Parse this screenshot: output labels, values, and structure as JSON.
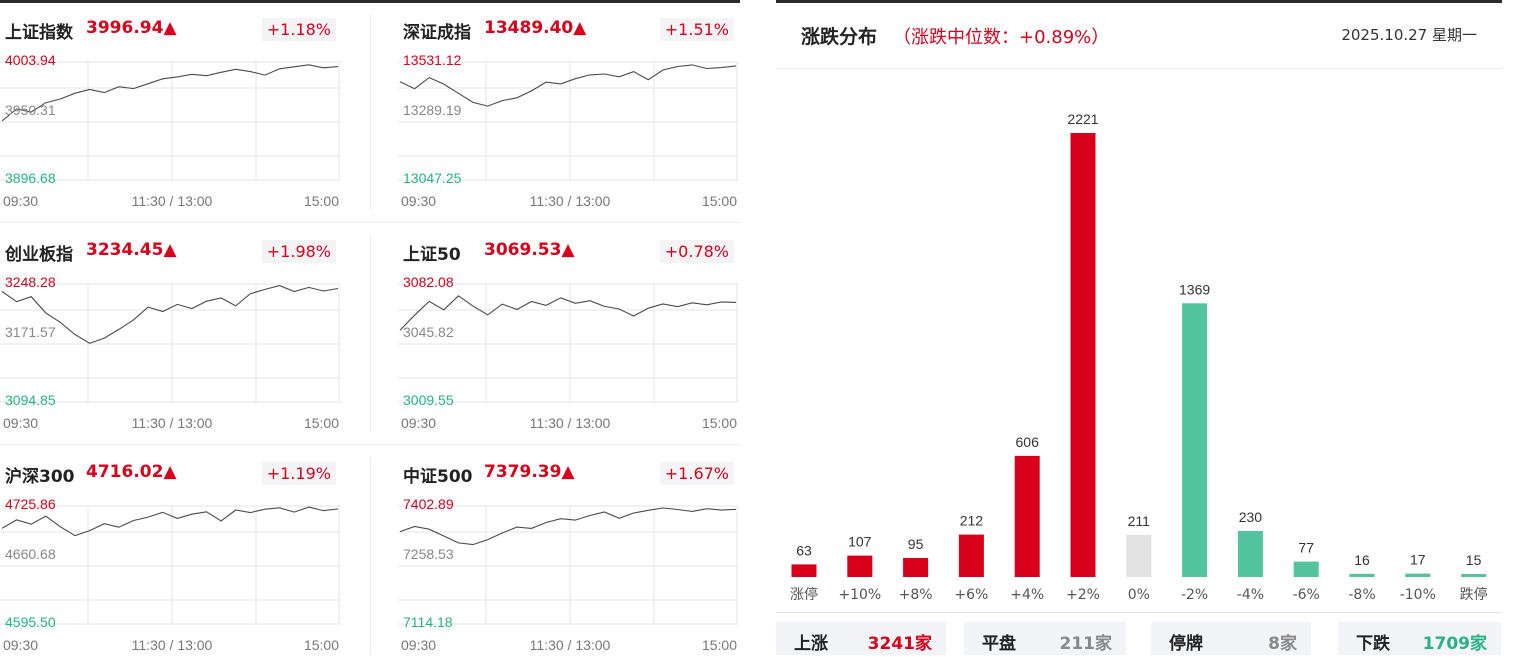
{
  "colors": {
    "up": "#d9001b",
    "down": "#27b383",
    "flat": "#e3e3e3",
    "neutral": "#888888"
  },
  "indices": [
    {
      "name": "上证指数",
      "value": "3996.94",
      "arrow": "▲",
      "change": "+1.18%",
      "high": "4003.94",
      "mid": "3950.31",
      "low": "3896.68",
      "times": [
        "09:30",
        "11:30 / 13:00",
        "15:00"
      ],
      "chart_data": {
        "type": "line",
        "ylim": [
          3896.68,
          4003.94
        ],
        "x_labels": [
          "09:30",
          "11:30 / 13:00",
          "15:00"
        ],
        "values": [
          3950.31,
          3961.2,
          3958.5,
          3966.9,
          3970.3,
          3975.6,
          3978.9,
          3976.1,
          3981.5,
          3979.8,
          3984.2,
          3988.7,
          3990.4,
          3992.8,
          3991.5,
          3994.6,
          3997.3,
          3995.2,
          3992.0,
          3997.8,
          3999.6,
          4001.4,
          3998.7,
          3999.8
        ]
      }
    },
    {
      "name": "深证成指",
      "value": "13489.40",
      "arrow": "▲",
      "change": "+1.51%",
      "high": "13531.12",
      "mid": "13289.19",
      "low": "13047.25",
      "times": [
        "09:30",
        "11:30 / 13:00",
        "15:00"
      ],
      "chart_data": {
        "type": "line",
        "ylim": [
          13047.25,
          13531.12
        ],
        "x_labels": [
          "09:30",
          "11:30 / 13:00",
          "15:00"
        ],
        "values": [
          13450.1,
          13421.8,
          13467.2,
          13440.3,
          13402.7,
          13365.4,
          13350.2,
          13372.9,
          13384.5,
          13412.6,
          13448.9,
          13441.2,
          13462.5,
          13478.3,
          13482.1,
          13470.5,
          13491.8,
          13458.6,
          13498.4,
          13512.7,
          13519.3,
          13504.6,
          13508.1,
          13515.2
        ]
      }
    },
    {
      "name": "创业板指",
      "value": "3234.45",
      "arrow": "▲",
      "change": "+1.98%",
      "high": "3248.28",
      "mid": "3171.57",
      "low": "3094.85",
      "times": [
        "09:30",
        "11:30 / 13:00",
        "15:00"
      ],
      "chart_data": {
        "type": "line",
        "ylim": [
          3094.85,
          3248.28
        ],
        "x_labels": [
          "09:30",
          "11:30 / 13:00",
          "15:00"
        ],
        "values": [
          3238.5,
          3225.3,
          3231.8,
          3210.7,
          3198.4,
          3182.6,
          3171.2,
          3177.9,
          3189.3,
          3201.6,
          3218.2,
          3212.5,
          3221.7,
          3216.4,
          3225.9,
          3230.1,
          3219.8,
          3235.7,
          3241.3,
          3246.2,
          3238.5,
          3243.9,
          3239.2,
          3242.4
        ]
      }
    },
    {
      "name": "上证50",
      "value": "3069.53",
      "arrow": "▲",
      "change": "+0.78%",
      "high": "3082.08",
      "mid": "3045.82",
      "low": "3009.55",
      "times": [
        "09:30",
        "11:30 / 13:00",
        "15:00"
      ],
      "chart_data": {
        "type": "line",
        "ylim": [
          3009.55,
          3082.08
        ],
        "x_labels": [
          "09:30",
          "11:30 / 13:00",
          "15:00"
        ],
        "values": [
          3053.6,
          3062.9,
          3071.4,
          3066.2,
          3074.8,
          3068.5,
          3063.1,
          3069.7,
          3066.4,
          3071.3,
          3068.9,
          3073.6,
          3070.2,
          3071.8,
          3068.3,
          3066.7,
          3062.4,
          3067.2,
          3069.8,
          3068.1,
          3070.5,
          3069.3,
          3071.1,
          3070.8
        ]
      }
    },
    {
      "name": "沪深300",
      "value": "4716.02",
      "arrow": "▲",
      "change": "+1.19%",
      "high": "4725.86",
      "mid": "4660.68",
      "low": "4595.50",
      "times": [
        "09:30",
        "11:30 / 13:00",
        "15:00"
      ],
      "chart_data": {
        "type": "line",
        "ylim": [
          4595.5,
          4725.86
        ],
        "x_labels": [
          "09:30",
          "11:30 / 13:00",
          "15:00"
        ],
        "values": [
          4701.2,
          4710.5,
          4705.8,
          4714.6,
          4702.9,
          4693.1,
          4698.7,
          4706.3,
          4702.4,
          4709.8,
          4713.6,
          4718.9,
          4712.2,
          4716.8,
          4719.5,
          4709.3,
          4721.4,
          4718.6,
          4722.3,
          4723.9,
          4719.1,
          4724.6,
          4720.8,
          4722.5
        ]
      }
    },
    {
      "name": "中证500",
      "value": "7379.39",
      "arrow": "▲",
      "change": "+1.67%",
      "high": "7402.89",
      "mid": "7258.53",
      "low": "7114.18",
      "times": [
        "09:30",
        "11:30 / 13:00",
        "15:00"
      ],
      "chart_data": {
        "type": "line",
        "ylim": [
          7114.18,
          7402.89
        ],
        "x_labels": [
          "09:30",
          "11:30 / 13:00",
          "15:00"
        ],
        "values": [
          7340.2,
          7352.8,
          7346.1,
          7329.5,
          7312.7,
          7308.4,
          7320.6,
          7336.9,
          7351.3,
          7348.2,
          7362.5,
          7371.8,
          7368.4,
          7379.6,
          7388.2,
          7372.9,
          7385.7,
          7392.4,
          7398.1,
          7394.3,
          7389.6,
          7396.2,
          7392.8,
          7394.9
        ]
      }
    }
  ],
  "distribution": {
    "title": "涨跌分布",
    "median": "（涨跌中位数：+0.89%）",
    "date": "2025.10.27 星期一",
    "chart_data": {
      "type": "bar",
      "categories": [
        "涨停",
        "+10%",
        "+8%",
        "+6%",
        "+4%",
        "+2%",
        "0%",
        "-2%",
        "-4%",
        "-6%",
        "-8%",
        "-10%",
        "跌停"
      ],
      "values": [
        63,
        107,
        95,
        212,
        606,
        2221,
        211,
        1369,
        230,
        77,
        16,
        17,
        15
      ],
      "bar_colors": [
        "#d9001b",
        "#d9001b",
        "#d9001b",
        "#d9001b",
        "#d9001b",
        "#d9001b",
        "#e3e3e3",
        "#52c49e",
        "#52c49e",
        "#52c49e",
        "#52c49e",
        "#52c49e",
        "#52c49e"
      ],
      "ylim": [
        0,
        2221
      ]
    },
    "stats": [
      {
        "label": "上涨",
        "value": "3241家",
        "color": "#d9001b"
      },
      {
        "label": "平盘",
        "value": "211家",
        "color": "#888888"
      },
      {
        "label": "停牌",
        "value": "8家",
        "color": "#888888"
      },
      {
        "label": "下跌",
        "value": "1709家",
        "color": "#27b383"
      }
    ]
  }
}
